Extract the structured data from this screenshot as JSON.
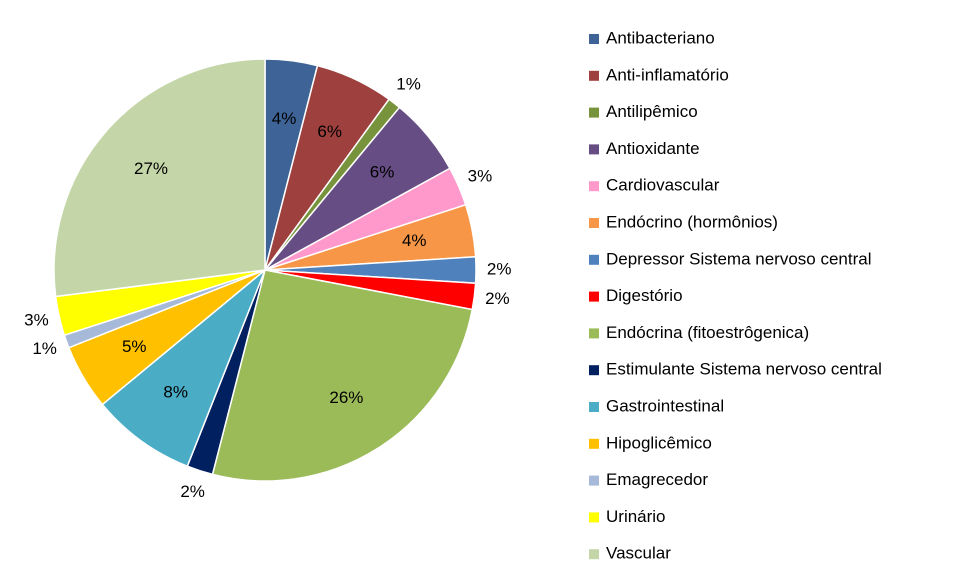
{
  "chart_data": {
    "type": "pie",
    "categories": [
      "Antibacteriano",
      "Anti-inflamatório",
      "Antilipêmico",
      "Antioxidante",
      "Cardiovascular",
      "Endócrino (hormônios)",
      "Depressor Sistema nervoso central",
      "Digestório",
      "Endócrina (fitoestrôgenica)",
      "Estimulante Sistema nervoso central",
      "Gastrointestinal",
      "Hipoglicêmico",
      "Emagrecedor",
      "Urinário",
      "Vascular"
    ],
    "values": [
      4,
      6,
      1,
      6,
      3,
      4,
      2,
      2,
      26,
      2,
      8,
      5,
      1,
      3,
      27
    ],
    "value_labels": [
      "4%",
      "6%",
      "1%",
      "6%",
      "3%",
      "4%",
      "2%",
      "2%",
      "26%",
      "2%",
      "8%",
      "5%",
      "1%",
      "3%",
      "27%"
    ],
    "colors": [
      "#3e6497",
      "#9e413e",
      "#77933c",
      "#664d84",
      "#ff99cc",
      "#f79646",
      "#4f81bd",
      "#ff0000",
      "#9bbb59",
      "#002060",
      "#4bacc6",
      "#ffc000",
      "#a6b9d8",
      "#ffff00",
      "#c4d6a8"
    ],
    "legend": "right"
  }
}
